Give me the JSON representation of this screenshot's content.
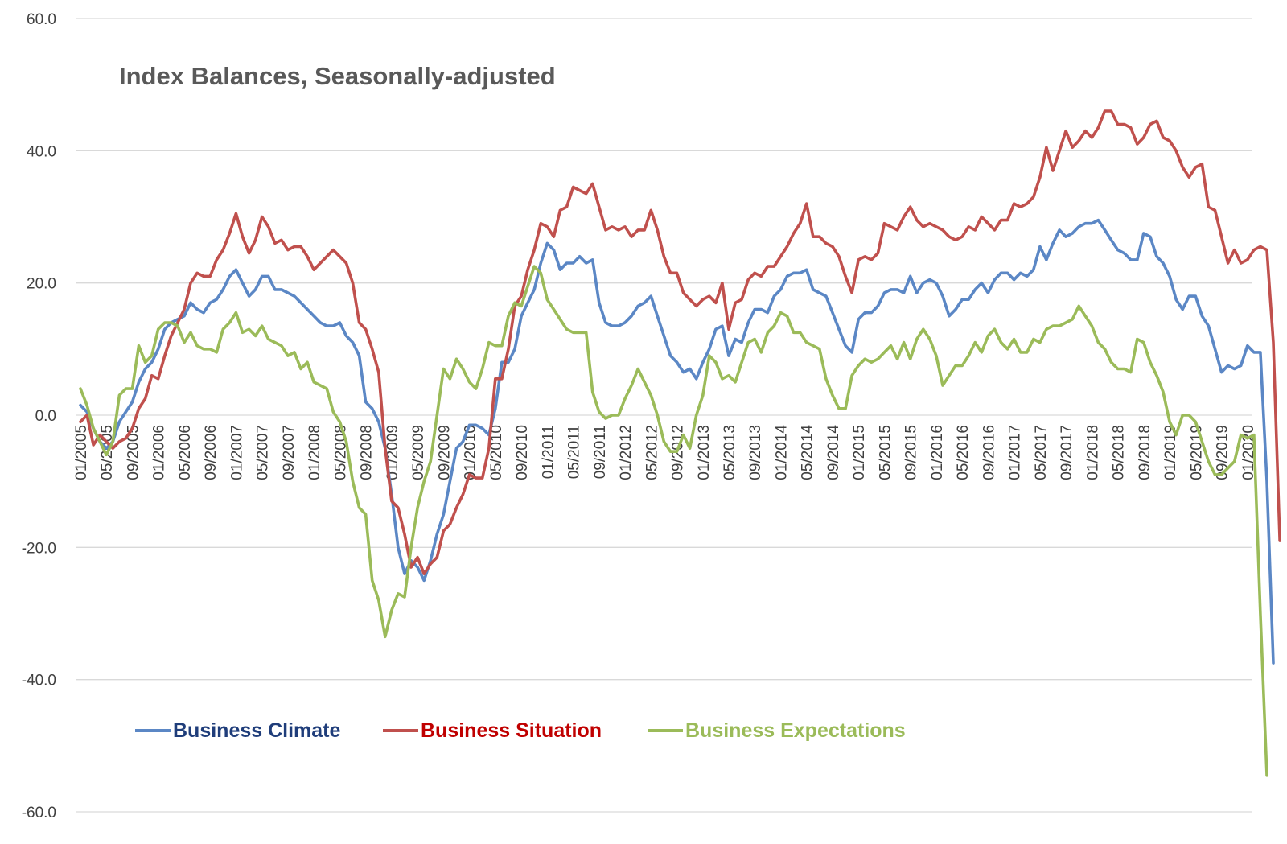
{
  "chart_data": {
    "type": "line",
    "title": "Index Balances, Seasonally-adjusted",
    "xlabel": "",
    "ylabel": "",
    "ylim": [
      -60,
      60
    ],
    "yticks": [
      "60.0",
      "40.0",
      "20.0",
      "0.0",
      "-20.0",
      "-40.0",
      "-60.0"
    ],
    "x_start": "01/2005",
    "xtick_labels": [
      "01/2005",
      "05/2005",
      "09/2005",
      "01/2006",
      "05/2006",
      "09/2006",
      "01/2007",
      "05/2007",
      "09/2007",
      "01/2008",
      "05/2008",
      "09/2008",
      "01/2009",
      "05/2009",
      "09/2009",
      "01/2010",
      "05/2010",
      "09/2010",
      "01/2011",
      "05/2011",
      "09/2011",
      "01/2012",
      "05/2012",
      "09/2012",
      "01/2013",
      "05/2013",
      "09/2013",
      "01/2014",
      "05/2014",
      "09/2014",
      "01/2015",
      "05/2015",
      "09/2015",
      "01/2016",
      "05/2016",
      "09/2016",
      "01/2017",
      "05/2017",
      "09/2017",
      "01/2018",
      "05/2018",
      "09/2018",
      "01/2019",
      "05/2019",
      "09/2019",
      "01/2020"
    ],
    "grid": true,
    "legend_position": "bottom-left",
    "series": [
      {
        "name": "Business Climate",
        "color": "#5B87C5",
        "legend_text_color": "#1F3D7A",
        "values": [
          1.5,
          0.5,
          -2,
          -4,
          -5,
          -4,
          -1,
          0.5,
          2,
          5,
          7,
          8,
          10,
          13,
          14,
          14.5,
          15,
          17,
          16,
          15.5,
          17,
          17.5,
          19,
          21,
          22,
          20,
          18,
          19,
          21,
          21,
          19,
          19,
          18.5,
          18,
          17,
          16,
          15,
          14,
          13.5,
          13.5,
          14,
          12,
          11,
          9,
          2,
          1,
          -1,
          -5,
          -12,
          -20,
          -24,
          -22,
          -23,
          -25,
          -22,
          -18,
          -15,
          -10,
          -5,
          -4,
          -1.5,
          -1.5,
          -2,
          -3,
          1,
          8,
          8,
          10,
          15,
          17,
          19,
          23,
          26,
          25,
          22,
          23,
          23,
          24,
          23,
          23.5,
          17,
          14,
          13.5,
          13.5,
          14,
          15,
          16.5,
          17,
          18,
          15,
          12,
          9,
          8,
          6.5,
          7,
          5.5,
          8,
          10,
          13,
          13.5,
          9,
          11.5,
          11,
          14,
          16,
          16,
          15.5,
          18,
          19,
          21,
          21.5,
          21.5,
          22,
          19,
          18.5,
          18,
          15.5,
          13,
          10.5,
          9.5,
          14.5,
          15.5,
          15.5,
          16.5,
          18.5,
          19,
          19,
          18.5,
          21,
          18.5,
          20,
          20.5,
          20,
          18,
          15,
          16,
          17.5,
          17.5,
          19,
          20,
          18.5,
          20.5,
          21.5,
          21.5,
          20.5,
          21.5,
          21,
          22,
          25.5,
          23.5,
          26,
          28,
          27,
          27.5,
          28.5,
          29,
          29,
          29.5,
          28,
          26.5,
          25,
          24.5,
          23.5,
          23.5,
          27.5,
          27,
          24,
          23,
          21,
          17.5,
          16,
          18,
          18,
          15,
          13.5,
          10,
          6.5,
          7.5,
          7,
          7.5,
          10.5,
          9.5,
          9.5,
          -10,
          -37.5
        ]
      },
      {
        "name": "Business Situation",
        "color": "#C0504D",
        "legend_text_color": "#C00000",
        "values": [
          -1,
          0,
          -4.5,
          -3,
          -4,
          -5,
          -4,
          -3.5,
          -2,
          1,
          2.5,
          6,
          5.5,
          9,
          12,
          14,
          16,
          20,
          21.5,
          21,
          21,
          23.5,
          25,
          27.5,
          30.5,
          27,
          24.5,
          26.5,
          30,
          28.5,
          26,
          26.5,
          25,
          25.5,
          25.5,
          24,
          22,
          23,
          24,
          25,
          24,
          23,
          20,
          14,
          13,
          10,
          6.5,
          -5,
          -13,
          -14,
          -18,
          -23,
          -21.5,
          -24,
          -22.5,
          -21.5,
          -17.5,
          -16.5,
          -14,
          -12,
          -9,
          -9.5,
          -9.5,
          -5,
          5.5,
          5.5,
          10,
          16.5,
          18,
          22,
          25,
          29,
          28.5,
          27,
          31,
          31.5,
          34.5,
          34,
          33.5,
          35,
          31.5,
          28,
          28.5,
          28,
          28.5,
          27,
          28,
          28,
          31,
          28,
          24,
          21.5,
          21.5,
          18.5,
          17.5,
          16.5,
          17.5,
          18,
          17,
          20,
          13,
          17,
          17.5,
          20.5,
          21.5,
          21,
          22.5,
          22.5,
          24,
          25.5,
          27.5,
          29,
          32,
          27,
          27,
          26,
          25.5,
          24,
          21,
          18.5,
          23.5,
          24,
          23.5,
          24.5,
          29,
          28.5,
          28,
          30,
          31.5,
          29.5,
          28.5,
          29,
          28.5,
          28,
          27,
          26.5,
          27,
          28.5,
          28,
          30,
          29,
          28,
          29.5,
          29.5,
          32,
          31.5,
          32,
          33,
          36,
          40.5,
          37,
          40,
          43,
          40.5,
          41.5,
          43,
          42,
          43.5,
          46,
          46,
          44,
          44,
          43.5,
          41,
          42,
          44,
          44.5,
          42,
          41.5,
          40,
          37.5,
          36,
          37.5,
          38,
          31.5,
          31,
          27,
          23,
          25,
          23,
          23.5,
          25,
          25.5,
          25,
          11,
          -19
        ]
      },
      {
        "name": "Business Expectations",
        "color": "#9BBB59",
        "legend_text_color": "#9BBB59",
        "values": [
          4,
          1.5,
          -2,
          -4,
          -6,
          -4,
          3,
          4,
          4,
          10.5,
          8,
          9,
          13,
          14,
          14,
          13.5,
          11,
          12.5,
          10.5,
          10,
          10,
          9.5,
          13,
          14,
          15.5,
          12.5,
          13,
          12,
          13.5,
          11.5,
          11,
          10.5,
          9,
          9.5,
          7,
          8,
          5,
          4.5,
          4,
          0.5,
          -1,
          -4,
          -10,
          -14,
          -15,
          -25,
          -28,
          -33.5,
          -29.5,
          -27,
          -27.5,
          -20,
          -14,
          -10,
          -7,
          0,
          7,
          5.5,
          8.5,
          7,
          5,
          4,
          7,
          11,
          10.5,
          10.5,
          15,
          17,
          16.5,
          19.5,
          22.5,
          21.5,
          17.5,
          16,
          14.5,
          13,
          12.5,
          12.5,
          12.5,
          3.5,
          0.5,
          -0.5,
          0,
          0,
          2.5,
          4.5,
          7,
          5,
          3,
          0,
          -4,
          -5.5,
          -5.5,
          -3,
          -5,
          0,
          3,
          9,
          8,
          5.5,
          6,
          5,
          8,
          11,
          11.5,
          9.5,
          12.5,
          13.5,
          15.5,
          15,
          12.5,
          12.5,
          11,
          10.5,
          10,
          5.5,
          3,
          1,
          1,
          6,
          7.5,
          8.5,
          8,
          8.5,
          9.5,
          10.5,
          8.5,
          11,
          8.5,
          11.5,
          13,
          11.5,
          9,
          4.5,
          6,
          7.5,
          7.5,
          9,
          11,
          9.5,
          12,
          13,
          11,
          10,
          11.5,
          9.5,
          9.5,
          11.5,
          11,
          13,
          13.5,
          13.5,
          14,
          14.5,
          16.5,
          15,
          13.5,
          11,
          10,
          8,
          7,
          7,
          6.5,
          11.5,
          11,
          8,
          6,
          3.5,
          -1,
          -3,
          0,
          0,
          -1,
          -4,
          -7,
          -9,
          -9,
          -8,
          -7,
          -3,
          -3.5,
          -3,
          -30,
          -54.5
        ]
      }
    ]
  }
}
